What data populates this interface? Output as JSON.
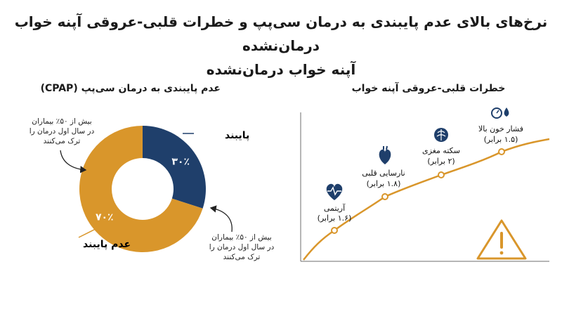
{
  "title": {
    "line1": "نرخ‌های بالای عدم پایبندی به درمان سی‌پپ و خطرات قلبی-عروقی آپنه خواب درمان‌نشده",
    "line2": "آپنه خواب درمان‌نشده"
  },
  "left_panel": {
    "heading": "عدم پایبندی به درمان سی‌پپ (CPAP)",
    "adherent_label": "پایبند",
    "nonadherent_label": "عدم پایبند",
    "adherent_pct_label": "۳۰٪",
    "nonadherent_pct_label": "۷۰٪",
    "note_top": [
      "بیش از ۵۰٪ بیماران",
      "در سال اول درمان را",
      "ترک می‌کنند"
    ],
    "note_bottom": [
      "بیش از ۵۰٪ بیماران",
      "در سال اول درمان را",
      "ترک می‌کنند"
    ],
    "colors": {
      "adherent": "#1f3f6b",
      "nonadherent": "#d9962b"
    }
  },
  "right_panel": {
    "heading": "خطرات قلبی-عروقی آپنه خواب",
    "points": [
      {
        "name": "آریتمی",
        "value_label": "(۱.۶ برابر)",
        "icon": "heartbeat-icon"
      },
      {
        "name": "نارسایی قلبی",
        "value_label": "(۱.۸ برابر)",
        "icon": "heart-icon"
      },
      {
        "name": "سکته مغزی",
        "value_label": "(۲ برابر)",
        "icon": "brain-icon"
      },
      {
        "name": "فشار خون بالا",
        "value_label": "(۱.۵ برابر)",
        "icon": "blood-pressure-icon"
      }
    ],
    "warning_icon": "warning-icon",
    "colors": {
      "line": "#d9962b",
      "icon": "#1f3f6b"
    }
  },
  "chart_data": {
    "type": "pie",
    "categories": [
      "پایبند",
      "عدم پایبند"
    ],
    "values": [
      30,
      70
    ]
  }
}
